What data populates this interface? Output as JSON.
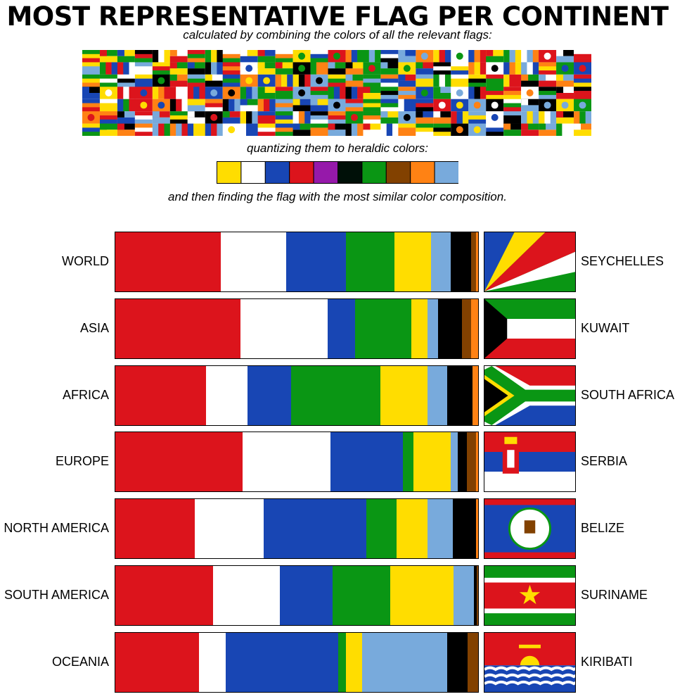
{
  "title": "MOST REPRESENTATIVE FLAG PER CONTINENT",
  "caption_step1": "calculated by combining the colors of all the relevant flags:",
  "caption_step2": "quantizing them to heraldic colors:",
  "caption_step3": "and then finding the flag with the most similar color composition.",
  "heraldic_palette": [
    "#FFDD00",
    "#FFFFFF",
    "#1846B4",
    "#DC141C",
    "#9619AA",
    "#001008",
    "#0A9614",
    "#824100",
    "#FF8214",
    "#78AADC"
  ],
  "color_order": [
    "red",
    "white",
    "blue",
    "green",
    "yellow",
    "light-blue",
    "black",
    "brown",
    "orange"
  ],
  "colors": {
    "red": "#DC141C",
    "white": "#FFFFFF",
    "blue": "#1846B4",
    "green": "#0A9614",
    "yellow": "#FFDD00",
    "light-blue": "#78AADC",
    "black": "#000000",
    "brown": "#824100",
    "orange": "#FF8214"
  },
  "chart_data": {
    "type": "bar",
    "stacked": true,
    "normalized": true,
    "categories": [
      "WORLD",
      "ASIA",
      "AFRICA",
      "EUROPE",
      "NORTH AMERICA",
      "SOUTH AMERICA",
      "OCEANIA"
    ],
    "series": [
      {
        "name": "red",
        "values": [
          29,
          34.5,
          25,
          34.5,
          22,
          27,
          23
        ]
      },
      {
        "name": "white",
        "values": [
          18,
          24,
          11.5,
          24,
          19,
          18.5,
          7.5
        ]
      },
      {
        "name": "blue",
        "values": [
          16.5,
          7.5,
          12,
          19.5,
          28.5,
          14.5,
          31
        ]
      },
      {
        "name": "green",
        "values": [
          13.5,
          15.5,
          24.5,
          3,
          8.5,
          16,
          2
        ]
      },
      {
        "name": "yellow",
        "values": [
          10,
          4.5,
          13,
          10,
          8.5,
          17.5,
          4.5
        ]
      },
      {
        "name": "light-blue",
        "values": [
          5.5,
          3,
          5.5,
          2,
          7,
          5.5,
          23.5
        ]
      },
      {
        "name": "black",
        "values": [
          5.5,
          6.5,
          7,
          2.5,
          6.5,
          0.8,
          5.5
        ]
      },
      {
        "name": "brown",
        "values": [
          1.5,
          2.5,
          0,
          2.5,
          0,
          0.4,
          3
        ]
      },
      {
        "name": "orange",
        "values": [
          0.5,
          2,
          1.5,
          0.5,
          0.5,
          0,
          0
        ]
      }
    ],
    "flags": [
      "SEYCHELLES",
      "KUWAIT",
      "SOUTH AFRICA",
      "SERBIA",
      "BELIZE",
      "SURINAME",
      "KIRIBATI"
    ]
  }
}
